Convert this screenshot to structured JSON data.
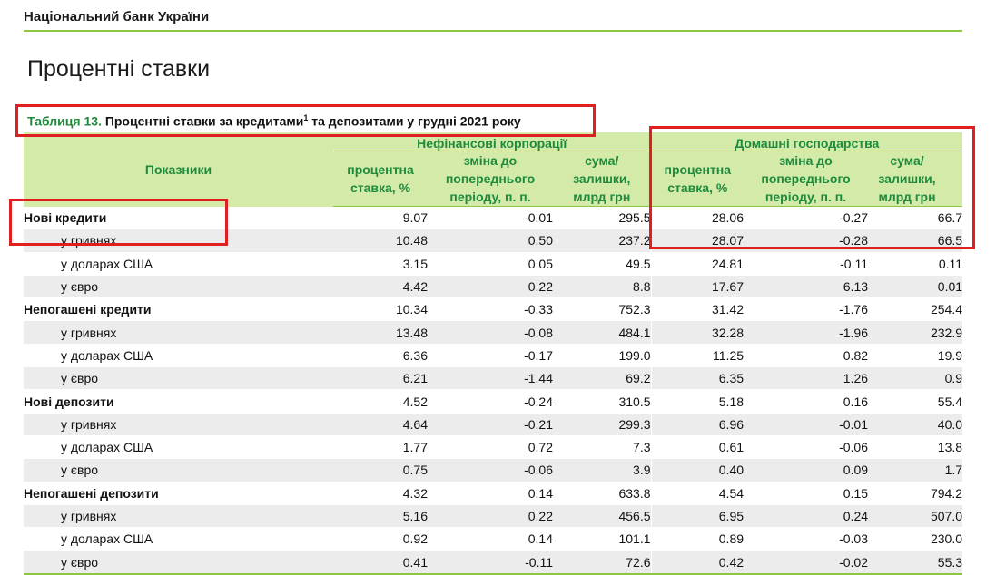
{
  "header": {
    "org": "Національний банк України",
    "page_title": "Процентні ставки"
  },
  "table": {
    "caption_num": "Таблиця 13.",
    "caption_text": "Процентні ставки за кредитами",
    "caption_sup": "1",
    "caption_rest": "та депозитами у грудні 2021 року",
    "col_indicator": "Показники",
    "group1": "Нефінансові корпорації",
    "group2": "Домашні господарства",
    "sub_rate_1": "процентна",
    "sub_rate_2": "ставка, %",
    "sub_change_1": "зміна до",
    "sub_change_2": "попереднього",
    "sub_change_3": "періоду, п. п.",
    "sub_sum_1": "сума/",
    "sub_sum_2": "залишки,",
    "sub_sum_3": "млрд грн",
    "rows": [
      {
        "label": "Нові кредити",
        "main": true,
        "v": [
          "9.07",
          "-0.01",
          "295.5",
          "28.06",
          "-0.27",
          "66.7"
        ]
      },
      {
        "label": "у гривнях",
        "main": false,
        "v": [
          "10.48",
          "0.50",
          "237.2",
          "28.07",
          "-0.28",
          "66.5"
        ]
      },
      {
        "label": "у доларах США",
        "main": false,
        "v": [
          "3.15",
          "0.05",
          "49.5",
          "24.81",
          "-0.11",
          "0.11"
        ]
      },
      {
        "label": "у євро",
        "main": false,
        "v": [
          "4.42",
          "0.22",
          "8.8",
          "17.67",
          "6.13",
          "0.01"
        ]
      },
      {
        "label": "Непогашені кредити",
        "main": true,
        "v": [
          "10.34",
          "-0.33",
          "752.3",
          "31.42",
          "-1.76",
          "254.4"
        ]
      },
      {
        "label": "у гривнях",
        "main": false,
        "v": [
          "13.48",
          "-0.08",
          "484.1",
          "32.28",
          "-1.96",
          "232.9"
        ]
      },
      {
        "label": "у доларах США",
        "main": false,
        "v": [
          "6.36",
          "-0.17",
          "199.0",
          "11.25",
          "0.82",
          "19.9"
        ]
      },
      {
        "label": "у євро",
        "main": false,
        "v": [
          "6.21",
          "-1.44",
          "69.2",
          "6.35",
          "1.26",
          "0.9"
        ]
      },
      {
        "label": "Нові депозити",
        "main": true,
        "v": [
          "4.52",
          "-0.24",
          "310.5",
          "5.18",
          "0.16",
          "55.4"
        ]
      },
      {
        "label": "у гривнях",
        "main": false,
        "v": [
          "4.64",
          "-0.21",
          "299.3",
          "6.96",
          "-0.01",
          "40.0"
        ]
      },
      {
        "label": "у доларах США",
        "main": false,
        "v": [
          "1.77",
          "0.72",
          "7.3",
          "0.61",
          "-0.06",
          "13.8"
        ]
      },
      {
        "label": "у євро",
        "main": false,
        "v": [
          "0.75",
          "-0.06",
          "3.9",
          "0.40",
          "0.09",
          "1.7"
        ]
      },
      {
        "label": "Непогашені депозити",
        "main": true,
        "v": [
          "4.32",
          "0.14",
          "633.8",
          "4.54",
          "0.15",
          "794.2"
        ]
      },
      {
        "label": "у гривнях",
        "main": false,
        "v": [
          "5.16",
          "0.22",
          "456.5",
          "6.95",
          "0.24",
          "507.0"
        ]
      },
      {
        "label": "у доларах США",
        "main": false,
        "v": [
          "0.92",
          "0.14",
          "101.1",
          "0.89",
          "-0.03",
          "230.0"
        ]
      },
      {
        "label": "у євро",
        "main": false,
        "v": [
          "0.41",
          "-0.11",
          "72.6",
          "0.42",
          "-0.02",
          "55.3"
        ]
      }
    ]
  },
  "highlight_color": "#e02020",
  "accent_green": "#8cc63f",
  "header_fill": "#d3eaa9"
}
